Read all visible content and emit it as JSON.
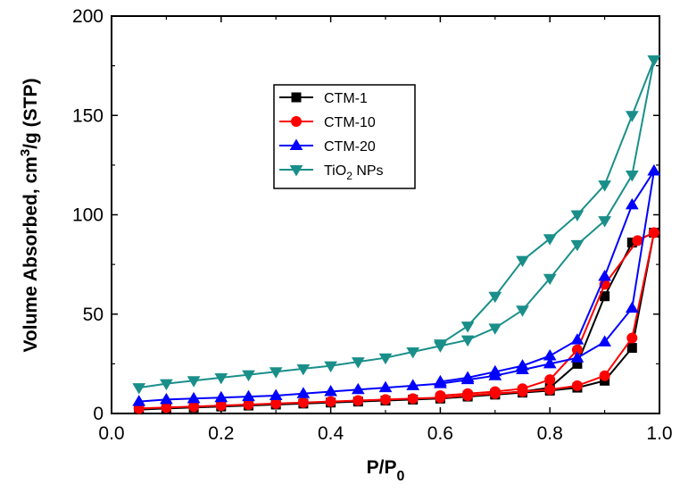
{
  "chart_data": {
    "type": "line",
    "title": "",
    "xlabel": {
      "main": "P/P",
      "sub": "0"
    },
    "ylabel": {
      "main": "Volume Absorbed, cm",
      "sup": "3",
      "tail": "/g (STP)"
    },
    "xlim": [
      0.0,
      1.0
    ],
    "ylim": [
      0,
      200
    ],
    "xticks": [
      0.0,
      0.2,
      0.4,
      0.6,
      0.8,
      1.0
    ],
    "xtick_labels": [
      "0.0",
      "0.2",
      "0.4",
      "0.6",
      "0.8",
      "1.0"
    ],
    "yticks": [
      0,
      50,
      100,
      150,
      200
    ],
    "ytick_labels": [
      "0",
      "50",
      "100",
      "150",
      "200"
    ],
    "grid": false,
    "legend_position": "upper-left-center",
    "series": [
      {
        "name": "CTM-1",
        "legend_main": "CTM-1",
        "legend_sub": "",
        "legend_tail": "",
        "color": "#000000",
        "marker": "square",
        "adsorption": [
          [
            0.05,
            2
          ],
          [
            0.1,
            2.5
          ],
          [
            0.15,
            3
          ],
          [
            0.2,
            3.5
          ],
          [
            0.25,
            4
          ],
          [
            0.3,
            4.5
          ],
          [
            0.35,
            5
          ],
          [
            0.4,
            5.5
          ],
          [
            0.45,
            6
          ],
          [
            0.5,
            6.5
          ],
          [
            0.55,
            7
          ],
          [
            0.6,
            7.5
          ],
          [
            0.65,
            8.5
          ],
          [
            0.7,
            9.5
          ],
          [
            0.75,
            10.5
          ],
          [
            0.8,
            11.5
          ],
          [
            0.85,
            13
          ],
          [
            0.9,
            16.5
          ],
          [
            0.95,
            33
          ],
          [
            0.99,
            91
          ]
        ],
        "desorption": [
          [
            0.99,
            91
          ],
          [
            0.95,
            86
          ],
          [
            0.9,
            59
          ],
          [
            0.85,
            25
          ],
          [
            0.8,
            13
          ],
          [
            0.75,
            11
          ],
          [
            0.7,
            10
          ],
          [
            0.65,
            9
          ],
          [
            0.6,
            8
          ]
        ]
      },
      {
        "name": "CTM-10",
        "legend_main": "CTM-10",
        "legend_sub": "",
        "legend_tail": "",
        "color": "#ff0000",
        "marker": "circle",
        "adsorption": [
          [
            0.05,
            2.5
          ],
          [
            0.1,
            3
          ],
          [
            0.15,
            3.5
          ],
          [
            0.2,
            4
          ],
          [
            0.25,
            4.5
          ],
          [
            0.3,
            5
          ],
          [
            0.35,
            5.5
          ],
          [
            0.4,
            6
          ],
          [
            0.45,
            6.5
          ],
          [
            0.5,
            7
          ],
          [
            0.55,
            7.5
          ],
          [
            0.6,
            8
          ],
          [
            0.65,
            9
          ],
          [
            0.7,
            10
          ],
          [
            0.75,
            11
          ],
          [
            0.8,
            12
          ],
          [
            0.85,
            14
          ],
          [
            0.9,
            19
          ],
          [
            0.95,
            38
          ],
          [
            0.99,
            91
          ]
        ],
        "desorption": [
          [
            0.99,
            91
          ],
          [
            0.96,
            87
          ],
          [
            0.9,
            65
          ],
          [
            0.85,
            32
          ],
          [
            0.8,
            17
          ],
          [
            0.75,
            12.5
          ],
          [
            0.7,
            11
          ],
          [
            0.65,
            10
          ],
          [
            0.6,
            9
          ]
        ]
      },
      {
        "name": "CTM-20",
        "legend_main": "CTM-20",
        "legend_sub": "",
        "legend_tail": "",
        "color": "#0000ff",
        "marker": "triangle-up",
        "adsorption": [
          [
            0.05,
            6
          ],
          [
            0.1,
            7
          ],
          [
            0.15,
            7.5
          ],
          [
            0.2,
            8
          ],
          [
            0.25,
            8.5
          ],
          [
            0.3,
            9
          ],
          [
            0.35,
            10
          ],
          [
            0.4,
            11
          ],
          [
            0.45,
            12
          ],
          [
            0.5,
            13
          ],
          [
            0.55,
            14
          ],
          [
            0.6,
            15
          ],
          [
            0.65,
            17
          ],
          [
            0.7,
            19
          ],
          [
            0.75,
            22
          ],
          [
            0.8,
            25
          ],
          [
            0.85,
            28
          ],
          [
            0.9,
            36
          ],
          [
            0.95,
            53
          ],
          [
            0.99,
            122
          ]
        ],
        "desorption": [
          [
            0.99,
            122
          ],
          [
            0.95,
            105
          ],
          [
            0.9,
            69
          ],
          [
            0.85,
            37
          ],
          [
            0.8,
            29
          ],
          [
            0.75,
            24
          ],
          [
            0.7,
            21
          ],
          [
            0.65,
            18
          ],
          [
            0.6,
            16
          ]
        ]
      },
      {
        "name": "TiO2 NPs",
        "legend_main": "TiO",
        "legend_sub": "2",
        "legend_tail": " NPs",
        "color": "#1a8f8a",
        "marker": "triangle-down",
        "adsorption": [
          [
            0.05,
            13
          ],
          [
            0.1,
            15
          ],
          [
            0.15,
            16.5
          ],
          [
            0.2,
            18
          ],
          [
            0.25,
            19.5
          ],
          [
            0.3,
            21
          ],
          [
            0.35,
            22.5
          ],
          [
            0.4,
            24
          ],
          [
            0.45,
            26
          ],
          [
            0.5,
            28
          ],
          [
            0.55,
            31
          ],
          [
            0.6,
            34
          ],
          [
            0.65,
            37
          ],
          [
            0.7,
            43
          ],
          [
            0.75,
            52
          ],
          [
            0.8,
            68
          ],
          [
            0.85,
            85
          ],
          [
            0.9,
            97
          ],
          [
            0.95,
            120
          ],
          [
            0.99,
            178
          ]
        ],
        "desorption": [
          [
            0.99,
            178
          ],
          [
            0.95,
            150
          ],
          [
            0.9,
            115
          ],
          [
            0.85,
            100
          ],
          [
            0.8,
            88
          ],
          [
            0.75,
            77
          ],
          [
            0.7,
            59
          ],
          [
            0.65,
            44
          ],
          [
            0.6,
            35
          ]
        ]
      }
    ]
  }
}
